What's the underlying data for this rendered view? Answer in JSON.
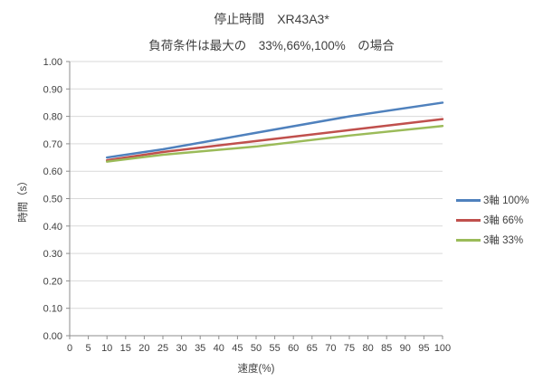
{
  "title": "停止時間　XR43A3*",
  "subtitle": "負荷条件は最大の　33%,66%,100%　の場合",
  "chart_data": {
    "type": "line",
    "x": [
      10,
      25,
      50,
      75,
      100
    ],
    "series": [
      {
        "name": "3軸 100%",
        "color": "#4F81BD",
        "values": [
          0.65,
          0.68,
          0.74,
          0.8,
          0.85
        ]
      },
      {
        "name": "3軸 66%",
        "color": "#C0504D",
        "values": [
          0.64,
          0.67,
          0.71,
          0.75,
          0.79
        ]
      },
      {
        "name": "3軸 33%",
        "color": "#9BBB59",
        "values": [
          0.635,
          0.66,
          0.69,
          0.73,
          0.765
        ]
      }
    ],
    "xlabel": "速度(%)",
    "ylabel": "時間（s）",
    "xlim": [
      0,
      100
    ],
    "ylim": [
      0.0,
      1.0
    ],
    "x_tick_step": 5,
    "y_tick_step": 0.1,
    "y_tick_decimals": 2,
    "grid": "horizontal",
    "legend_position": "right"
  },
  "colors": {
    "background": "#FFFFFF",
    "gridline": "#D9D9D9",
    "axis": "#8C8C8C",
    "text": "#404040"
  }
}
